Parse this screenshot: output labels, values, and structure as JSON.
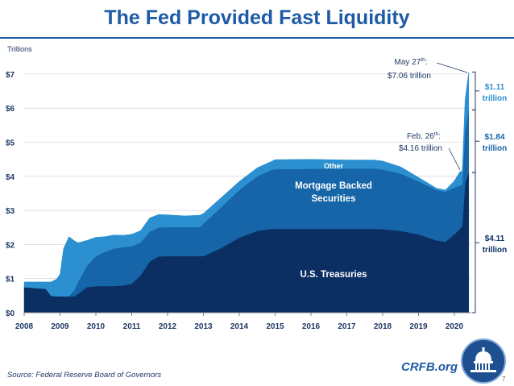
{
  "title": "The Fed Provided Fast Liquidity",
  "source": "Source: Federal Reserve Board of Governors",
  "brand": "CRFB.org",
  "page_number": "7",
  "logo": {
    "icon": "capitol-dome-icon"
  },
  "colors": {
    "title": "#1d5ba6",
    "treasuries": "#0b2f63",
    "mbs": "#1565a8",
    "other": "#2b8fd0",
    "annotation_blue": "#2b8fd0",
    "annotation_dark": "#1f3864"
  },
  "chart_data": {
    "type": "area",
    "stacked": true,
    "title": "The Fed Provided Fast Liquidity",
    "ylabel": "Trillions",
    "xlabel": "",
    "ylim": [
      0,
      7.2
    ],
    "y_ticks": [
      "$0",
      "$1",
      "$2",
      "$3",
      "$4",
      "$5",
      "$6",
      "$7"
    ],
    "x_ticks": [
      "2008",
      "2009",
      "2010",
      "2011",
      "2012",
      "2013",
      "2014",
      "2015",
      "2016",
      "2017",
      "2018",
      "2019",
      "2020"
    ],
    "x": [
      2008.0,
      2008.6,
      2008.75,
      2008.9,
      2009.0,
      2009.1,
      2009.25,
      2009.4,
      2009.5,
      2009.75,
      2010.0,
      2010.25,
      2010.5,
      2010.75,
      2011.0,
      2011.25,
      2011.5,
      2011.75,
      2012.0,
      2012.5,
      2012.9,
      2013.0,
      2013.5,
      2014.0,
      2014.5,
      2014.9,
      2015.0,
      2016.0,
      2017.0,
      2017.75,
      2018.0,
      2018.5,
      2019.0,
      2019.5,
      2019.75,
      2020.0,
      2020.15,
      2020.22,
      2020.3,
      2020.4
    ],
    "series": [
      {
        "name": "U.S. Treasuries",
        "values": [
          0.75,
          0.7,
          0.5,
          0.48,
          0.48,
          0.48,
          0.48,
          0.48,
          0.55,
          0.75,
          0.78,
          0.78,
          0.78,
          0.8,
          0.85,
          1.1,
          1.5,
          1.65,
          1.66,
          1.66,
          1.66,
          1.66,
          1.9,
          2.2,
          2.4,
          2.46,
          2.46,
          2.46,
          2.46,
          2.46,
          2.45,
          2.4,
          2.3,
          2.12,
          2.08,
          2.3,
          2.45,
          2.55,
          3.8,
          4.11
        ]
      },
      {
        "name": "Mortgage Backed Securities",
        "values": [
          0.0,
          0.0,
          0.0,
          0.0,
          0.0,
          0.0,
          0.0,
          0.18,
          0.35,
          0.62,
          0.88,
          1.0,
          1.1,
          1.12,
          1.1,
          0.96,
          0.88,
          0.85,
          0.85,
          0.85,
          0.85,
          0.95,
          1.2,
          1.4,
          1.6,
          1.73,
          1.75,
          1.76,
          1.77,
          1.77,
          1.75,
          1.68,
          1.55,
          1.48,
          1.47,
          1.37,
          1.28,
          1.2,
          1.55,
          1.84
        ]
      },
      {
        "name": "Other",
        "values": [
          0.15,
          0.2,
          0.4,
          0.5,
          0.65,
          1.4,
          1.75,
          1.45,
          1.15,
          0.75,
          0.55,
          0.45,
          0.4,
          0.35,
          0.35,
          0.35,
          0.4,
          0.38,
          0.36,
          0.33,
          0.35,
          0.3,
          0.28,
          0.25,
          0.25,
          0.25,
          0.28,
          0.28,
          0.25,
          0.25,
          0.25,
          0.2,
          0.12,
          0.05,
          0.05,
          0.2,
          0.4,
          0.41,
          0.9,
          1.11
        ]
      }
    ],
    "area_labels": {
      "treasuries": "U.S. Treasuries",
      "mbs_line1": "Mortgage Backed",
      "mbs_line2": "Securities",
      "other": "Other"
    },
    "annotations": {
      "feb_line1": "Feb. 26",
      "feb_sup": "th",
      "feb_colon": ":",
      "feb_line2": "$4.16 trillion",
      "may_line1": "May 27",
      "may_sup": "th",
      "may_colon": ":",
      "may_line2": "$7.06 trillion"
    },
    "brackets": [
      {
        "series": "Other",
        "line1": "$1.11",
        "line2": "trillion",
        "from": 5.95,
        "to": 7.06
      },
      {
        "series": "Mortgage Backed Securities",
        "line1": "$1.84",
        "line2": "trillion",
        "from": 4.11,
        "to": 5.95
      },
      {
        "series": "U.S. Treasuries",
        "line1": "$4.11",
        "line2": "trillion",
        "from": 0.0,
        "to": 4.11
      }
    ]
  }
}
